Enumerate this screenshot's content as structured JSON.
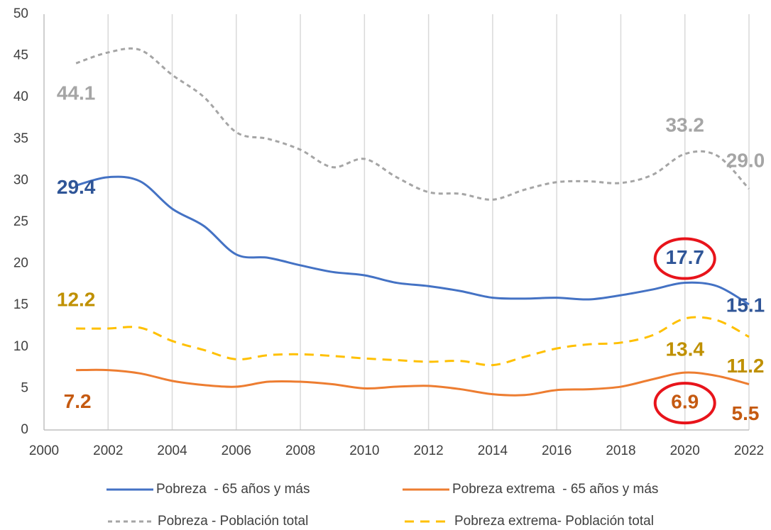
{
  "chart_data": {
    "type": "line",
    "x": [
      2001,
      2002,
      2003,
      2004,
      2005,
      2006,
      2007,
      2008,
      2009,
      2010,
      2011,
      2012,
      2013,
      2014,
      2015,
      2016,
      2017,
      2018,
      2019,
      2020,
      2021,
      2022
    ],
    "xlim": [
      2000,
      2022
    ],
    "xticks": [
      2000,
      2002,
      2004,
      2006,
      2008,
      2010,
      2012,
      2014,
      2016,
      2018,
      2020,
      2022
    ],
    "ylim": [
      0,
      50
    ],
    "yticks": [
      0,
      5,
      10,
      15,
      20,
      25,
      30,
      35,
      40,
      45,
      50
    ],
    "grid": "x",
    "series": [
      {
        "name": "Pobreza  - 65 años y más",
        "color": "#4472c4",
        "label_color": "#2f5597",
        "dash": "solid",
        "values": [
          29.4,
          30.4,
          29.9,
          26.6,
          24.5,
          21.1,
          20.7,
          19.8,
          19.0,
          18.6,
          17.7,
          17.3,
          16.7,
          15.9,
          15.8,
          15.9,
          15.7,
          16.2,
          16.9,
          17.7,
          17.3,
          15.1
        ],
        "value_labels": [
          "29.4",
          null,
          null,
          null,
          null,
          null,
          null,
          null,
          null,
          null,
          null,
          null,
          null,
          null,
          null,
          null,
          null,
          null,
          null,
          "17.7",
          null,
          "15.1"
        ]
      },
      {
        "name": "Pobreza extrema  - 65 años y más",
        "color": "#ed7d31",
        "label_color": "#c55a11",
        "dash": "solid",
        "values": [
          7.2,
          7.2,
          6.8,
          5.9,
          5.4,
          5.2,
          5.8,
          5.8,
          5.5,
          5.0,
          5.2,
          5.3,
          4.9,
          4.3,
          4.2,
          4.8,
          4.9,
          5.2,
          6.1,
          6.9,
          6.5,
          5.5
        ],
        "value_labels": [
          "7.2",
          null,
          null,
          null,
          null,
          null,
          null,
          null,
          null,
          null,
          null,
          null,
          null,
          null,
          null,
          null,
          null,
          null,
          null,
          "6.9",
          null,
          "5.5"
        ]
      },
      {
        "name": "Pobreza - Población total",
        "color": "#a5a5a5",
        "label_color": "#a5a5a5",
        "dash": "short",
        "values": [
          44.1,
          45.4,
          45.7,
          42.7,
          40.0,
          35.8,
          35.0,
          33.7,
          31.6,
          32.6,
          30.4,
          28.6,
          28.4,
          27.7,
          28.9,
          29.8,
          29.9,
          29.7,
          30.7,
          33.2,
          33.0,
          29.0
        ],
        "value_labels": [
          "44.1",
          null,
          null,
          null,
          null,
          null,
          null,
          null,
          null,
          null,
          null,
          null,
          null,
          null,
          null,
          null,
          null,
          null,
          null,
          "33.2",
          null,
          "29.0"
        ]
      },
      {
        "name": "Pobreza extrema- Población total",
        "color": "#ffc000",
        "label_color": "#bf9000",
        "dash": "long",
        "values": [
          12.2,
          12.2,
          12.3,
          10.7,
          9.6,
          8.5,
          9.0,
          9.1,
          8.9,
          8.6,
          8.4,
          8.2,
          8.3,
          7.8,
          8.8,
          9.8,
          10.3,
          10.5,
          11.4,
          13.4,
          13.2,
          11.2
        ],
        "value_labels": [
          "12.2",
          null,
          null,
          null,
          null,
          null,
          null,
          null,
          null,
          null,
          null,
          null,
          null,
          null,
          null,
          null,
          null,
          null,
          null,
          "13.4",
          null,
          "11.2"
        ]
      }
    ]
  }
}
